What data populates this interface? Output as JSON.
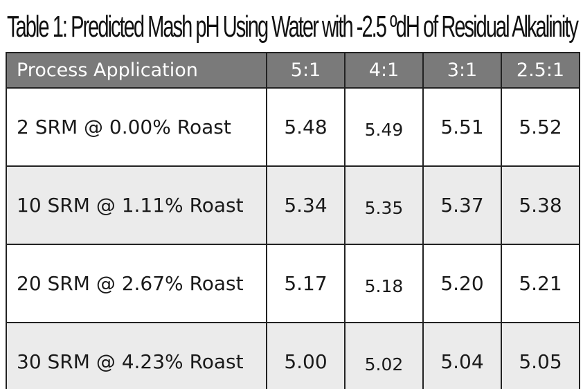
{
  "title": "Table 1:  Predicted Mash pH Using Water with -2.5 ºdH of Residual Alkalinity",
  "table": {
    "headers": [
      "Process Application",
      "5:1",
      "4:1",
      "3:1",
      "2.5:1"
    ],
    "rows": [
      [
        "2 SRM @ 0.00% Roast",
        "5.48",
        "5.49",
        "5.51",
        "5.52"
      ],
      [
        "10 SRM @ 1.11% Roast",
        "5.34",
        "5.35",
        "5.37",
        "5.38"
      ],
      [
        "20 SRM @ 2.67% Roast",
        "5.17",
        "5.18",
        "5.20",
        "5.21"
      ],
      [
        "30 SRM @ 4.23% Roast",
        "5.00",
        "5.02",
        "5.04",
        "5.05"
      ]
    ],
    "colors": {
      "header_bg": "#7a7a7a",
      "header_text": "#ffffff",
      "stripe_bg": "#ebebeb",
      "border": "#222222"
    }
  }
}
